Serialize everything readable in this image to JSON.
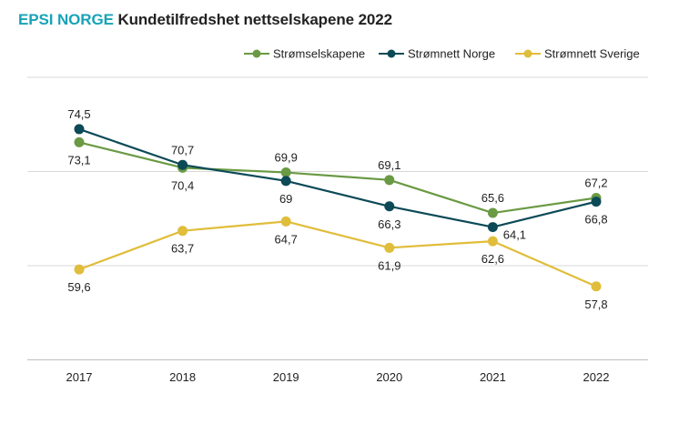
{
  "title": {
    "brand": "EPSI NORGE",
    "text": "Kundetilfredshet nettselskapene 2022"
  },
  "chart_data": {
    "type": "line",
    "title": "EPSI NORGE Kundetilfredshet nettselskapene 2022",
    "xlabel": "",
    "ylabel": "",
    "categories": [
      "2017",
      "2018",
      "2019",
      "2020",
      "2021",
      "2022"
    ],
    "ylim": [
      50,
      80
    ],
    "grid": true,
    "legend_position": "top-right",
    "series": [
      {
        "name": "Strømselskapene",
        "color": "#6a9a44",
        "values": [
          73.1,
          70.4,
          69.9,
          69.1,
          65.6,
          67.2
        ],
        "labels": [
          "73,1",
          "70,4",
          "69,9",
          "69,1",
          "65,6",
          "67,2"
        ],
        "label_pos": [
          "below",
          "below",
          "above",
          "above",
          "above",
          "above"
        ]
      },
      {
        "name": "Strømnett Norge",
        "color": "#0c4a57",
        "values": [
          74.5,
          70.7,
          69,
          66.3,
          64.1,
          66.8
        ],
        "labels": [
          "74,5",
          "70,7",
          "69",
          "66,3",
          "64,1",
          "66,8"
        ],
        "label_pos": [
          "above",
          "above",
          "below",
          "below",
          "right-below",
          "below"
        ]
      },
      {
        "name": "Strømnett Sverige",
        "color": "#e0bd3a",
        "values": [
          59.6,
          63.7,
          64.7,
          61.9,
          62.6,
          57.8
        ],
        "labels": [
          "59,6",
          "63,7",
          "64,7",
          "61,9",
          "62,6",
          "57,8"
        ],
        "label_pos": [
          "below",
          "below",
          "below",
          "below",
          "below",
          "below"
        ]
      }
    ]
  }
}
